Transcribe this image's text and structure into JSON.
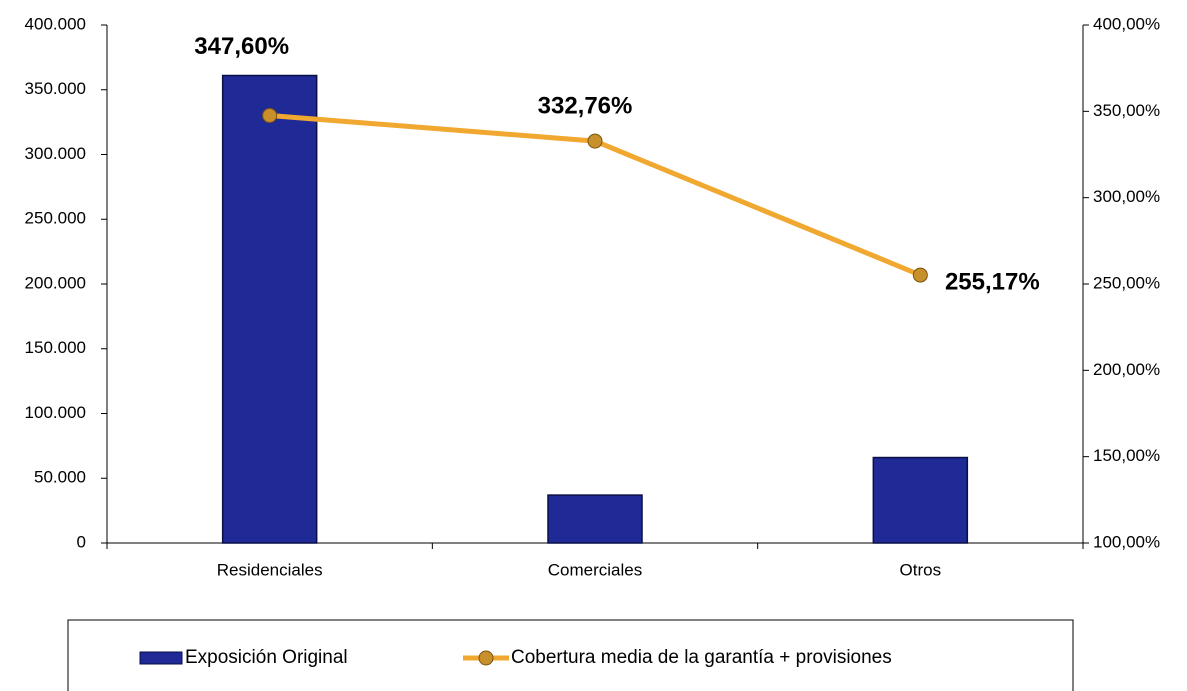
{
  "chart_data": {
    "type": "bar",
    "categories": [
      "Residenciales",
      "Comerciales",
      "Otros"
    ],
    "series": [
      {
        "name": "Exposición Original",
        "type": "bar",
        "color": "#1f2a96",
        "values": [
          361000,
          37000,
          66000
        ]
      },
      {
        "name": "Cobertura media de la garantía + provisiones",
        "type": "line",
        "axis": "y2",
        "color": "#f0a830",
        "values": [
          347.6,
          332.76,
          255.17
        ],
        "value_labels": [
          "347,60%",
          "332,76%",
          "255,17%"
        ]
      }
    ],
    "ylim": [
      0,
      400000
    ],
    "yticks": [
      0,
      {
        "value": 50000,
        "label": "50.000"
      },
      {
        "value": 100000,
        "label": "100.000"
      },
      {
        "value": 150000,
        "label": "150.000"
      },
      {
        "value": 200000,
        "label": "200.000"
      },
      {
        "value": 250000,
        "label": "250.000"
      },
      {
        "value": 300000,
        "label": "300.000"
      },
      {
        "value": 350000,
        "label": "350.000"
      },
      {
        "value": 400000,
        "label": "400.000"
      }
    ],
    "y2lim": [
      100,
      400
    ],
    "y2ticks": [
      {
        "value": 100,
        "label": "100,00%"
      },
      {
        "value": 150,
        "label": "150,00%"
      },
      {
        "value": 200,
        "label": "200,00%"
      },
      {
        "value": 250,
        "label": "250,00%"
      },
      {
        "value": 300,
        "label": "300,00%"
      },
      {
        "value": 350,
        "label": "350,00%"
      },
      {
        "value": 400,
        "label": "400,00%"
      }
    ],
    "grid": false,
    "legend": "bottom"
  }
}
